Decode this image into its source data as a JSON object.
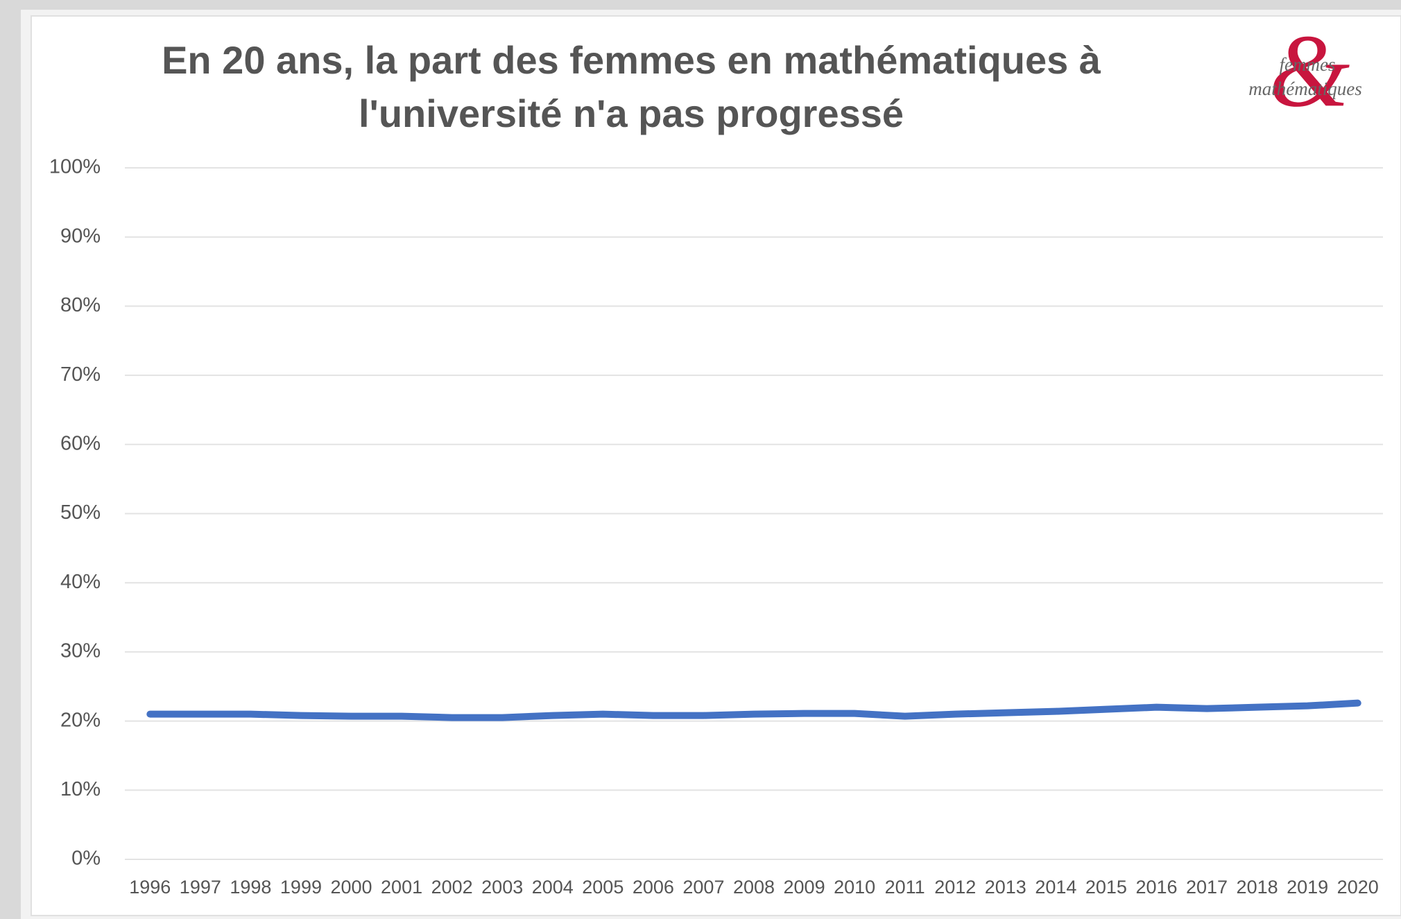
{
  "chart_data": {
    "type": "line",
    "title_lines": [
      "En 20 ans, la part des femmes en mathématiques à",
      "l'université n'a pas progressé"
    ],
    "logo": {
      "symbol": "&",
      "line1": "femmes",
      "line2": "mathématiques"
    },
    "categories": [
      "1996",
      "1997",
      "1998",
      "1999",
      "2000",
      "2001",
      "2002",
      "2003",
      "2004",
      "2005",
      "2006",
      "2007",
      "2008",
      "2009",
      "2010",
      "2011",
      "2012",
      "2013",
      "2014",
      "2015",
      "2016",
      "2017",
      "2018",
      "2019",
      "2020"
    ],
    "series": [
      {
        "name": null,
        "color": "#4472c4",
        "values": [
          21,
          21,
          21,
          20.8,
          20.7,
          20.7,
          20.5,
          20.5,
          20.8,
          21,
          20.8,
          20.8,
          21,
          21.1,
          21.1,
          20.7,
          21,
          21.2,
          21.4,
          21.7,
          22,
          21.8,
          22,
          22.2,
          22.6
        ]
      }
    ],
    "ylim": [
      0,
      100
    ],
    "yticks": [
      {
        "value": 0,
        "label": "0%"
      },
      {
        "value": 10,
        "label": "10%"
      },
      {
        "value": 20,
        "label": "20%"
      },
      {
        "value": 30,
        "label": "30%"
      },
      {
        "value": 40,
        "label": "40%"
      },
      {
        "value": 50,
        "label": "50%"
      },
      {
        "value": 60,
        "label": "60%"
      },
      {
        "value": 70,
        "label": "70%"
      },
      {
        "value": 80,
        "label": "80%"
      },
      {
        "value": 90,
        "label": "90%"
      },
      {
        "value": 100,
        "label": "100%"
      }
    ],
    "grid": true
  }
}
